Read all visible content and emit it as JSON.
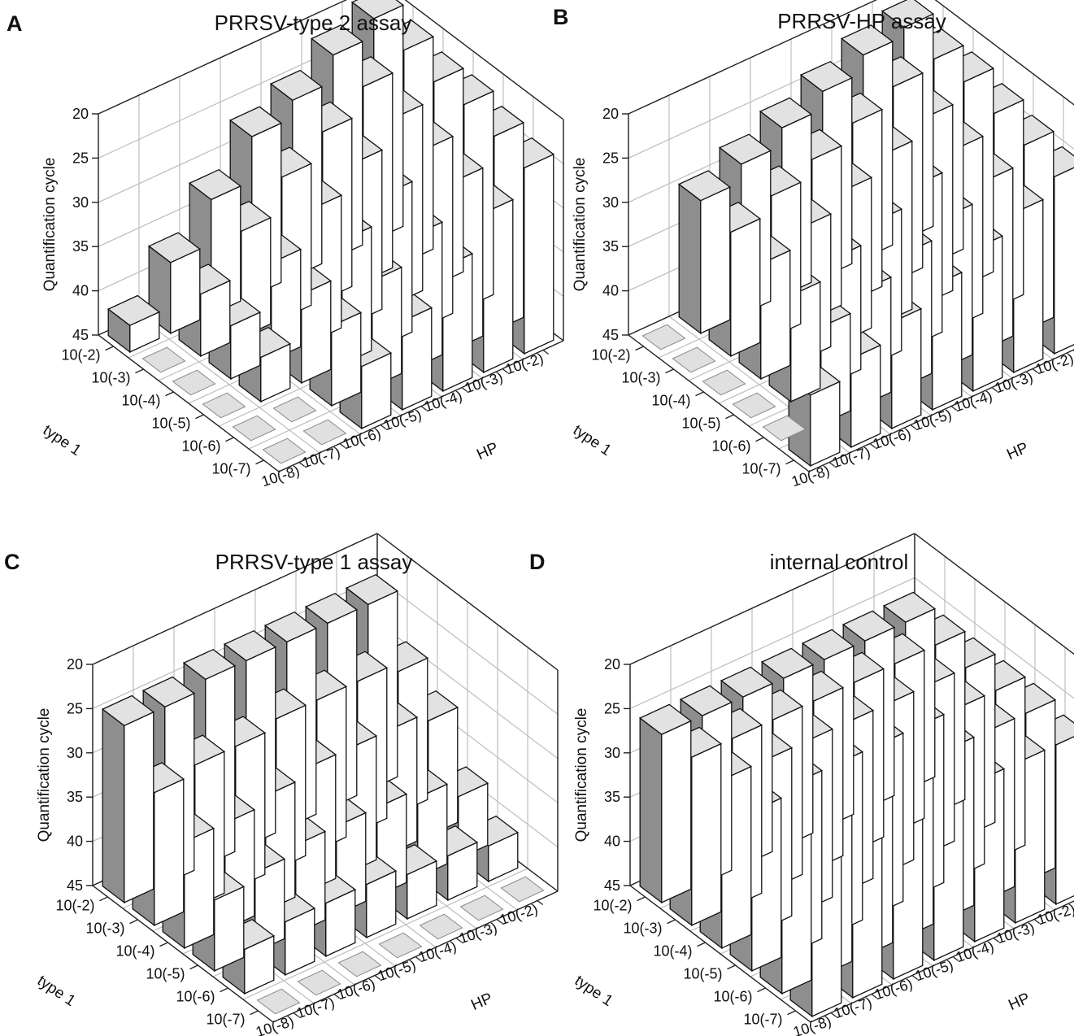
{
  "chart_data": [
    {
      "panel": "A",
      "type": "bar3d",
      "title": "PRRSV-type 2 assay",
      "zlabel": "Quantification cycle",
      "xlabel": "HP",
      "ylabel": "type 1",
      "zlim": [
        20,
        45
      ],
      "zticks": [
        "20",
        "25",
        "30",
        "35",
        "40",
        "45"
      ],
      "x_categories": [
        "10(-8)",
        "10(-7)",
        "10(-6)",
        "10(-5)",
        "10(-4)",
        "10(-3)",
        "10(-2)"
      ],
      "y_categories": [
        "10(-7)",
        "10(-6)",
        "10(-5)",
        "10(-4)",
        "10(-3)",
        "10(-2)"
      ],
      "values": [
        [
          null,
          null,
          null,
          null,
          null,
          42
        ],
        [
          null,
          null,
          40,
          39,
          38,
          37
        ],
        [
          38,
          36,
          35,
          34,
          33,
          32
        ],
        [
          35,
          33,
          31,
          30,
          29,
          27
        ],
        [
          31,
          30,
          28,
          27,
          26,
          25
        ],
        [
          27,
          26,
          25,
          24,
          23,
          22
        ],
        [
          24,
          23,
          22,
          22,
          21,
          20
        ]
      ]
    },
    {
      "panel": "B",
      "type": "bar3d",
      "title": "PRRSV-HP assay",
      "zlabel": "Quantification cycle",
      "xlabel": "HP",
      "ylabel": "type 1",
      "zlim": [
        20,
        45
      ],
      "zticks": [
        "20",
        "25",
        "30",
        "35",
        "40",
        "45"
      ],
      "x_categories": [
        "10(-8)",
        "10(-7)",
        "10(-6)",
        "10(-5)",
        "10(-4)",
        "10(-3)",
        "10(-2)"
      ],
      "y_categories": [
        "10(-7)",
        "10(-6)",
        "10(-5)",
        "10(-4)",
        "10(-3)",
        "10(-2)"
      ],
      "values": [
        [
          37,
          null,
          null,
          null,
          null,
          null
        ],
        [
          35,
          34,
          33,
          32,
          31,
          30
        ],
        [
          33,
          32,
          31,
          30,
          29,
          28
        ],
        [
          31,
          30,
          29,
          28,
          27,
          26
        ],
        [
          29,
          28,
          27,
          26,
          25,
          24
        ],
        [
          27,
          26,
          25,
          24,
          23,
          22
        ],
        [
          25,
          24,
          23,
          22,
          22,
          21
        ]
      ]
    },
    {
      "panel": "C",
      "type": "bar3d",
      "title": "PRRSV-type 1 assay",
      "zlabel": "Quantification cycle",
      "xlabel": "HP",
      "ylabel": "type 1",
      "zlim": [
        20,
        45
      ],
      "zticks": [
        "20",
        "25",
        "30",
        "35",
        "40",
        "45"
      ],
      "x_categories": [
        "10(-8)",
        "10(-7)",
        "10(-6)",
        "10(-5)",
        "10(-4)",
        "10(-3)",
        "10(-2)"
      ],
      "y_categories": [
        "10(-7)",
        "10(-6)",
        "10(-5)",
        "10(-4)",
        "10(-3)",
        "10(-2)"
      ],
      "values": [
        [
          null,
          40,
          37,
          33,
          30,
          25
        ],
        [
          null,
          39,
          36,
          33,
          29,
          25
        ],
        [
          null,
          39,
          35,
          32,
          29,
          24
        ],
        [
          null,
          39,
          35,
          31,
          28,
          24
        ],
        [
          null,
          40,
          35,
          31,
          28,
          24
        ],
        [
          null,
          40,
          36,
          31,
          28,
          24
        ],
        [
          null,
          41,
          38,
          32,
          29,
          24
        ]
      ]
    },
    {
      "panel": "D",
      "type": "bar3d",
      "title": "internal control",
      "zlabel": "Quantification cycle",
      "xlabel": "HP",
      "ylabel": "type 1",
      "zlim": [
        20,
        45
      ],
      "zticks": [
        "20",
        "25",
        "30",
        "35",
        "40",
        "45"
      ],
      "x_categories": [
        "10(-8)",
        "10(-7)",
        "10(-6)",
        "10(-5)",
        "10(-4)",
        "10(-3)",
        "10(-2)"
      ],
      "y_categories": [
        "10(-7)",
        "10(-6)",
        "10(-5)",
        "10(-4)",
        "10(-3)",
        "10(-2)"
      ],
      "values": [
        [
          28,
          27,
          27,
          26,
          26,
          26
        ],
        [
          27,
          27,
          26,
          26,
          26,
          26
        ],
        [
          27,
          27,
          26,
          26,
          26,
          26
        ],
        [
          27,
          27,
          26,
          26,
          26,
          26
        ],
        [
          27,
          26,
          26,
          26,
          26,
          26
        ],
        [
          27,
          26,
          26,
          26,
          26,
          26
        ],
        [
          27,
          26,
          26,
          26,
          26,
          26
        ]
      ]
    }
  ]
}
